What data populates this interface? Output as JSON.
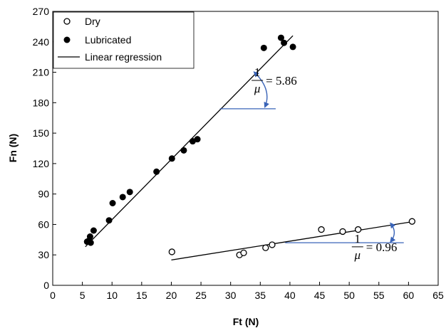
{
  "chart_data": {
    "type": "scatter",
    "title": "",
    "xlabel": "Ft (N)",
    "ylabel": "Fn (N)",
    "xlim": [
      0,
      65
    ],
    "ylim": [
      0,
      270
    ],
    "xticks": [
      0,
      5,
      10,
      15,
      20,
      25,
      30,
      35,
      40,
      45,
      50,
      55,
      60,
      65
    ],
    "yticks": [
      0,
      30,
      60,
      90,
      120,
      150,
      180,
      210,
      240,
      270
    ],
    "grid": false,
    "legend_position": "top-left",
    "colors": {
      "points": "#000000",
      "line": "#000000",
      "annotation": "#3a64b8"
    },
    "series": [
      {
        "name": "Dry",
        "marker": "open-circle",
        "points": [
          [
            20.1,
            33
          ],
          [
            31.5,
            30
          ],
          [
            32.2,
            32
          ],
          [
            35.9,
            37
          ],
          [
            37.0,
            40
          ],
          [
            45.3,
            55
          ],
          [
            48.9,
            53
          ],
          [
            51.5,
            55
          ],
          [
            60.6,
            63
          ]
        ]
      },
      {
        "name": "Lubricated",
        "marker": "filled-circle",
        "points": [
          [
            5.8,
            43
          ],
          [
            6.1,
            44
          ],
          [
            6.3,
            48
          ],
          [
            6.4,
            42
          ],
          [
            6.9,
            54
          ],
          [
            9.5,
            64
          ],
          [
            10.1,
            81
          ],
          [
            11.8,
            87
          ],
          [
            13.0,
            92
          ],
          [
            17.5,
            112
          ],
          [
            20.1,
            125
          ],
          [
            22.1,
            133
          ],
          [
            23.6,
            142
          ],
          [
            24.4,
            144
          ],
          [
            35.6,
            234
          ],
          [
            38.5,
            244
          ],
          [
            39.0,
            239
          ],
          [
            40.5,
            235
          ]
        ]
      },
      {
        "name": "Linear regression",
        "marker": "line",
        "segments": [
          {
            "x": [
              5.5,
              40.5
            ],
            "y": [
              38,
              246
            ]
          },
          {
            "x": [
              20.0,
              61.0
            ],
            "y": [
              25,
              63
            ]
          }
        ]
      }
    ],
    "annotations": [
      {
        "numerator": "1",
        "denominator": "μ",
        "value": "= 5.86",
        "label_at": [
          33.9,
          202
        ],
        "horizontal_ref": {
          "x": [
            28.2,
            37.6
          ],
          "y": 174
        },
        "arc": {
          "from": [
            34.0,
            210
          ],
          "to": [
            35.8,
            176
          ]
        }
      },
      {
        "numerator": "1",
        "denominator": "μ",
        "value": "= 0.96",
        "label_at": [
          50.8,
          38
        ],
        "horizontal_ref": {
          "x": [
            39.2,
            59.2
          ],
          "y": 42
        },
        "arc": {
          "from": [
            57.0,
            61
          ],
          "to": [
            57.0,
            43
          ]
        }
      }
    ]
  }
}
